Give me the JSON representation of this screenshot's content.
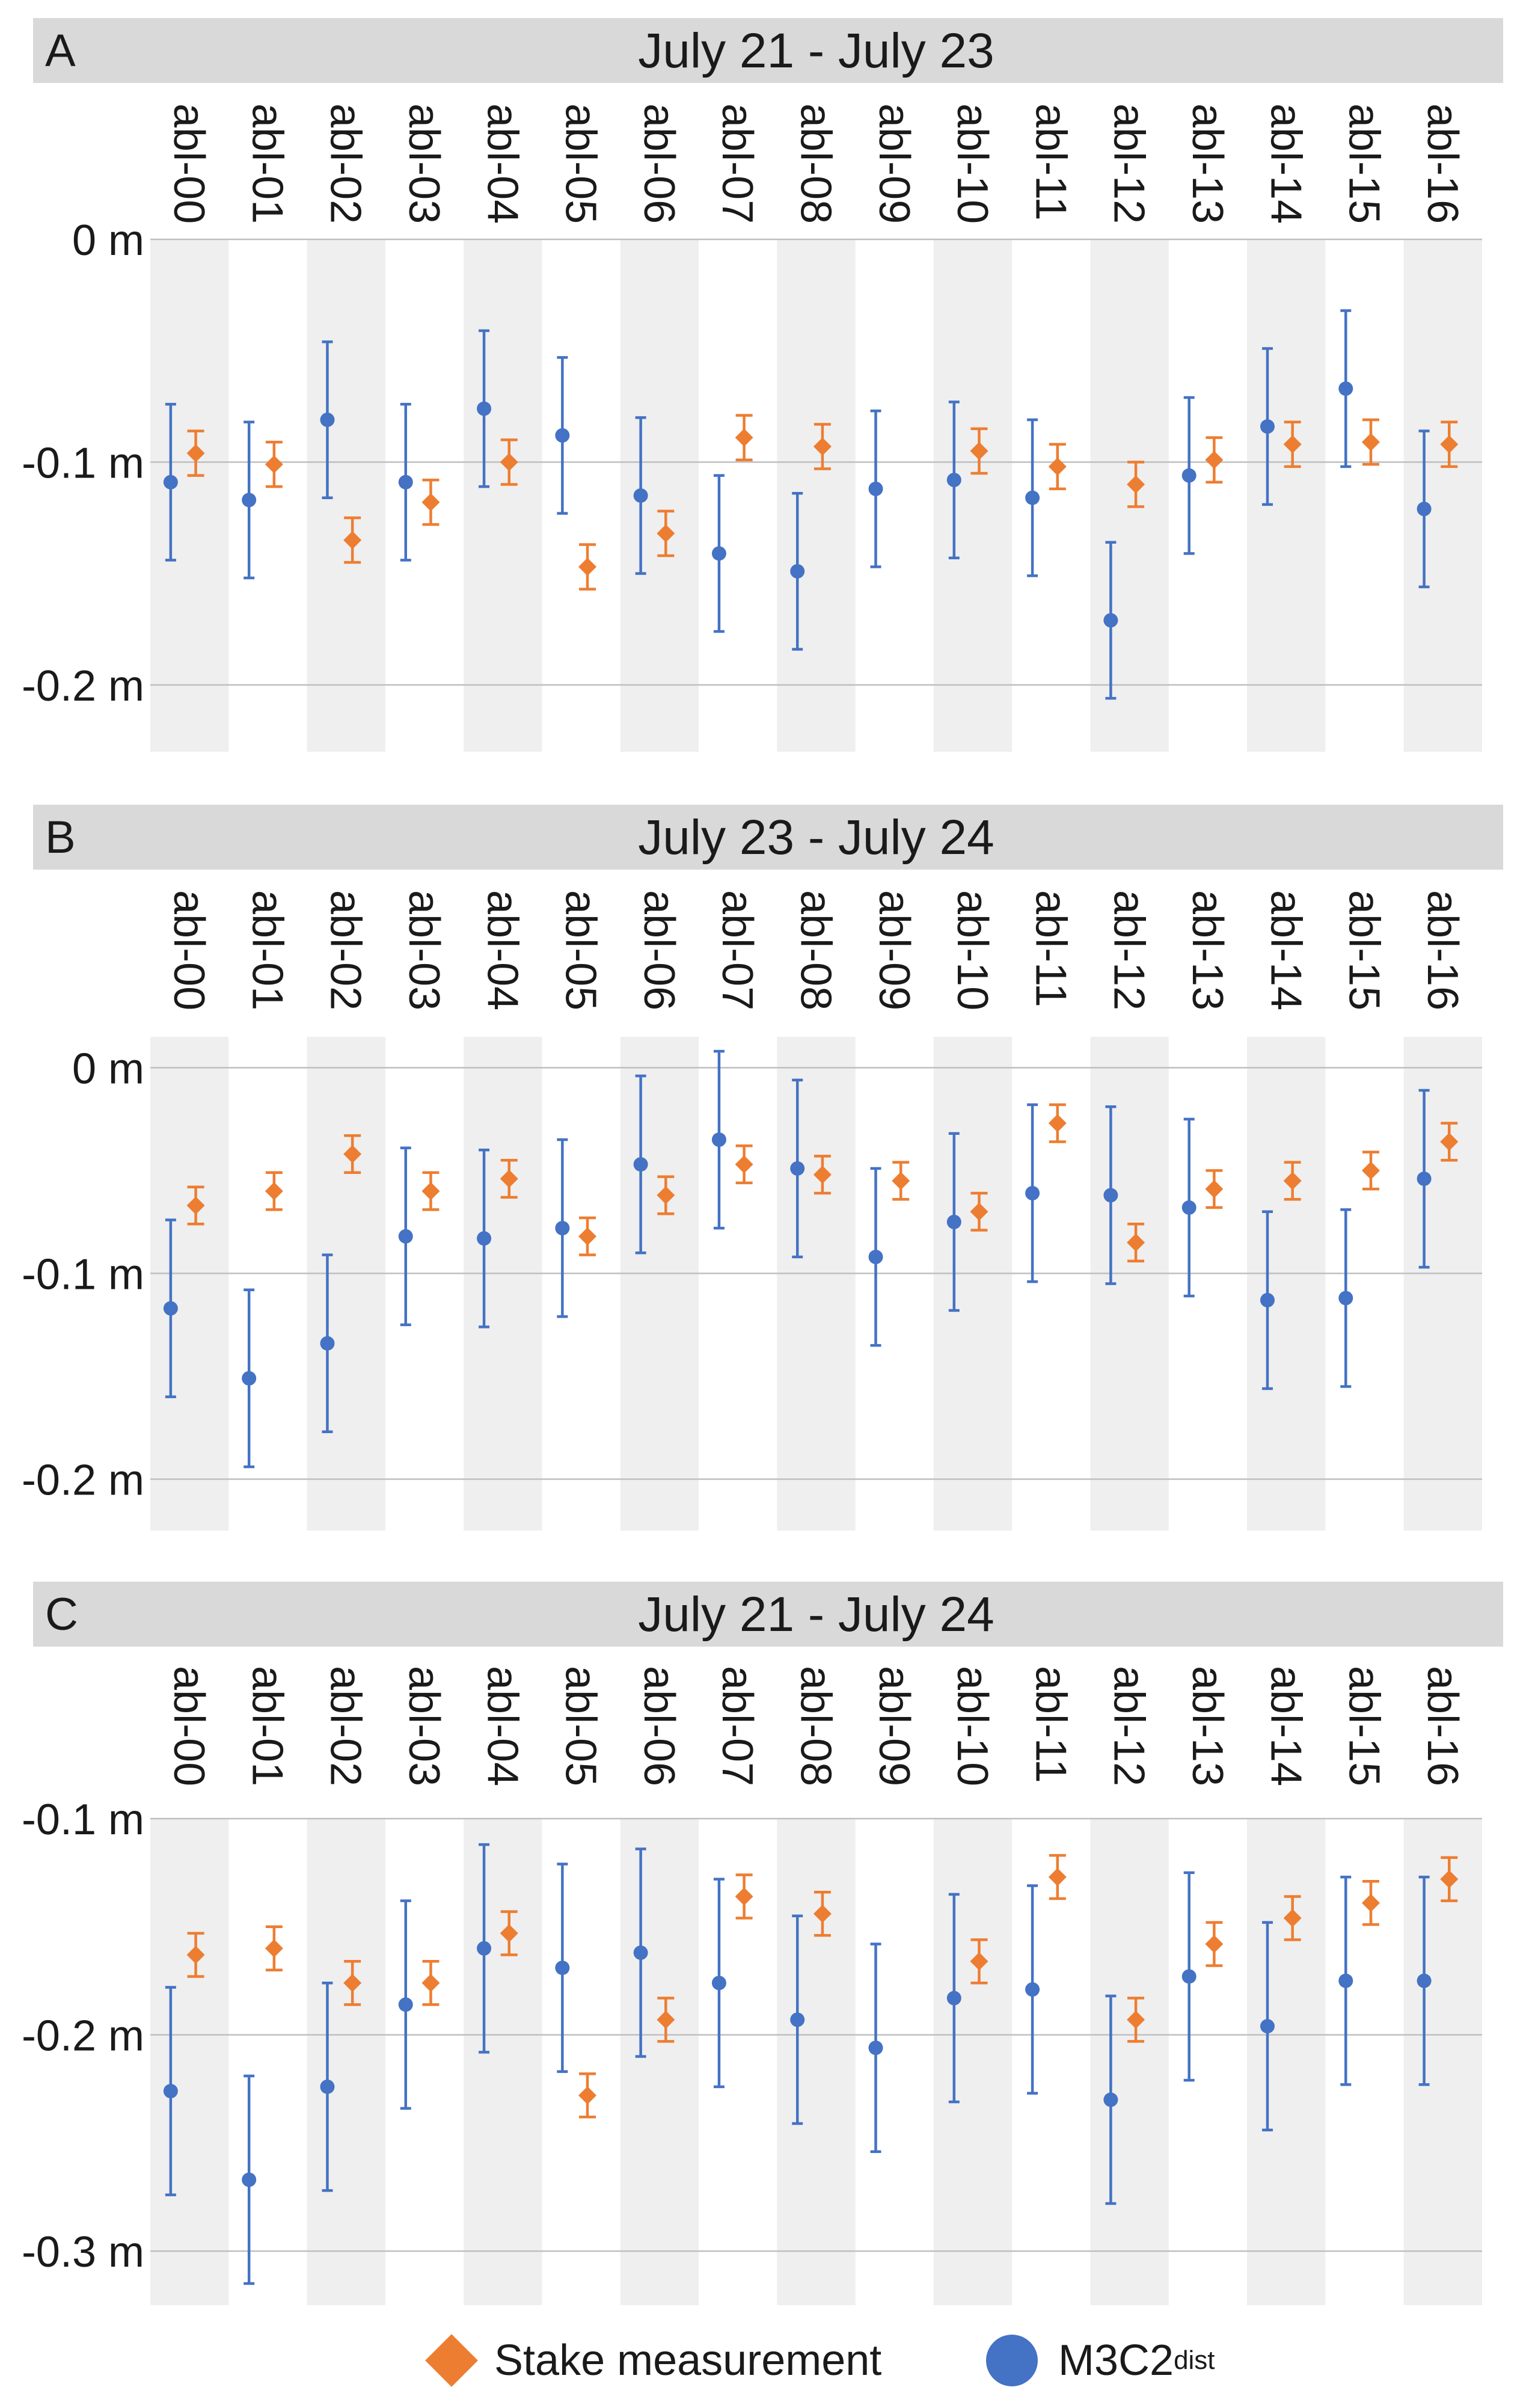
{
  "chart_data": [
    {
      "type": "scatter",
      "panel_letter": "A",
      "title": "July 21 - July 23",
      "categories": [
        "abl-00",
        "abl-01",
        "abl-02",
        "abl-03",
        "abl-04",
        "abl-05",
        "abl-06",
        "abl-07",
        "abl-08",
        "abl-09",
        "abl-10",
        "abl-11",
        "abl-12",
        "abl-13",
        "abl-14",
        "abl-15",
        "abl-16"
      ],
      "ylim": [
        -0.23,
        0.0
      ],
      "yticks": [
        0,
        -0.1,
        -0.2
      ],
      "ytick_labels": [
        "0 m",
        "-0.1 m",
        "-0.2 m"
      ],
      "series": [
        {
          "name": "M3C2dist",
          "marker": "circle",
          "color": "#4472c4",
          "values": [
            -0.109,
            -0.117,
            -0.081,
            -0.109,
            -0.076,
            -0.088,
            -0.115,
            -0.141,
            -0.149,
            -0.112,
            -0.108,
            -0.116,
            -0.171,
            -0.106,
            -0.084,
            -0.067,
            -0.121
          ],
          "error": 0.035
        },
        {
          "name": "Stake measurement",
          "marker": "diamond",
          "color": "#ed7d31",
          "values": [
            -0.096,
            -0.101,
            -0.135,
            -0.118,
            -0.1,
            -0.147,
            -0.132,
            -0.089,
            -0.093,
            null,
            -0.095,
            -0.102,
            -0.11,
            -0.099,
            -0.092,
            -0.091,
            -0.092
          ],
          "error": 0.01
        }
      ]
    },
    {
      "type": "scatter",
      "panel_letter": "B",
      "title": "July 23 - July 24",
      "categories": [
        "abl-00",
        "abl-01",
        "abl-02",
        "abl-03",
        "abl-04",
        "abl-05",
        "abl-06",
        "abl-07",
        "abl-08",
        "abl-09",
        "abl-10",
        "abl-11",
        "abl-12",
        "abl-13",
        "abl-14",
        "abl-15",
        "abl-16"
      ],
      "ylim": [
        -0.225,
        0.015
      ],
      "yticks": [
        0,
        -0.1,
        -0.2
      ],
      "ytick_labels": [
        "0 m",
        "-0.1 m",
        "-0.2 m"
      ],
      "series": [
        {
          "name": "M3C2dist",
          "marker": "circle",
          "color": "#4472c4",
          "values": [
            -0.117,
            -0.151,
            -0.134,
            -0.082,
            -0.083,
            -0.078,
            -0.047,
            -0.035,
            -0.049,
            -0.092,
            -0.075,
            -0.061,
            -0.062,
            -0.068,
            -0.113,
            -0.112,
            -0.054
          ],
          "error": 0.043
        },
        {
          "name": "Stake measurement",
          "marker": "diamond",
          "color": "#ed7d31",
          "values": [
            -0.067,
            -0.06,
            -0.042,
            -0.06,
            -0.054,
            -0.082,
            -0.062,
            -0.047,
            -0.052,
            -0.055,
            -0.07,
            -0.027,
            -0.085,
            -0.059,
            -0.055,
            -0.05,
            -0.036
          ],
          "error": 0.009
        }
      ]
    },
    {
      "type": "scatter",
      "panel_letter": "C",
      "title": "July 21 - July 24",
      "categories": [
        "abl-00",
        "abl-01",
        "abl-02",
        "abl-03",
        "abl-04",
        "abl-05",
        "abl-06",
        "abl-07",
        "abl-08",
        "abl-09",
        "abl-10",
        "abl-11",
        "abl-12",
        "abl-13",
        "abl-14",
        "abl-15",
        "abl-16"
      ],
      "ylim": [
        -0.325,
        -0.1
      ],
      "yticks": [
        -0.1,
        -0.2,
        -0.3
      ],
      "ytick_labels": [
        "-0.1 m",
        "-0.2 m",
        "-0.3 m"
      ],
      "series": [
        {
          "name": "M3C2dist",
          "marker": "circle",
          "color": "#4472c4",
          "values": [
            -0.226,
            -0.267,
            -0.224,
            -0.186,
            -0.16,
            -0.169,
            -0.162,
            -0.176,
            -0.193,
            -0.206,
            -0.183,
            -0.179,
            -0.23,
            -0.173,
            -0.196,
            -0.175,
            -0.175
          ],
          "error": 0.048
        },
        {
          "name": "Stake measurement",
          "marker": "diamond",
          "color": "#ed7d31",
          "values": [
            -0.163,
            -0.16,
            -0.176,
            -0.176,
            -0.153,
            -0.228,
            -0.193,
            -0.136,
            -0.144,
            null,
            -0.166,
            -0.127,
            -0.193,
            -0.158,
            -0.146,
            -0.139,
            -0.128
          ],
          "error": 0.01
        }
      ]
    }
  ],
  "legend": {
    "stake_label": "Stake measurement",
    "m3c2_label": "M3C2",
    "m3c2_subscript": "dist"
  }
}
